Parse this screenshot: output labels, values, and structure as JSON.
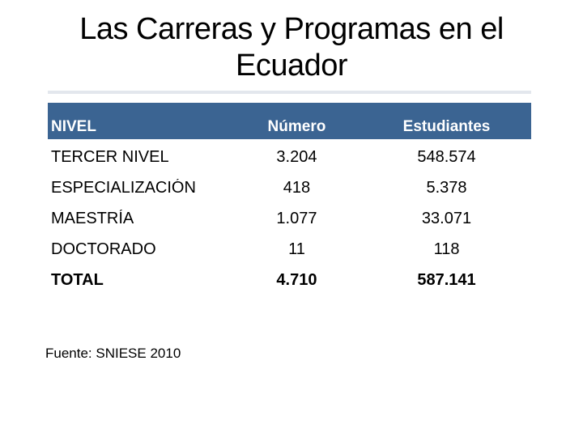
{
  "slide": {
    "title": "Las Carreras y Programas en el Ecuador",
    "source_note": "Fuente: SNIESE 2010"
  },
  "table": {
    "header_bg": "#3B6492",
    "header_text_color": "#FFFFFF",
    "columns": [
      "NIVEL",
      "Número",
      "Estudiantes"
    ],
    "rows": [
      {
        "nivel": "TERCER NIVEL",
        "numero": "3.204",
        "estudiantes": "548.574"
      },
      {
        "nivel": "ESPECIALIZACIÓN",
        "numero": "418",
        "estudiantes": "5.378"
      },
      {
        "nivel": "MAESTRÍA",
        "numero": "1.077",
        "estudiantes": "33.071"
      },
      {
        "nivel": "DOCTORADO",
        "numero": "11",
        "estudiantes": "118"
      },
      {
        "nivel": "TOTAL",
        "numero": "4.710",
        "estudiantes": "587.141"
      }
    ]
  }
}
